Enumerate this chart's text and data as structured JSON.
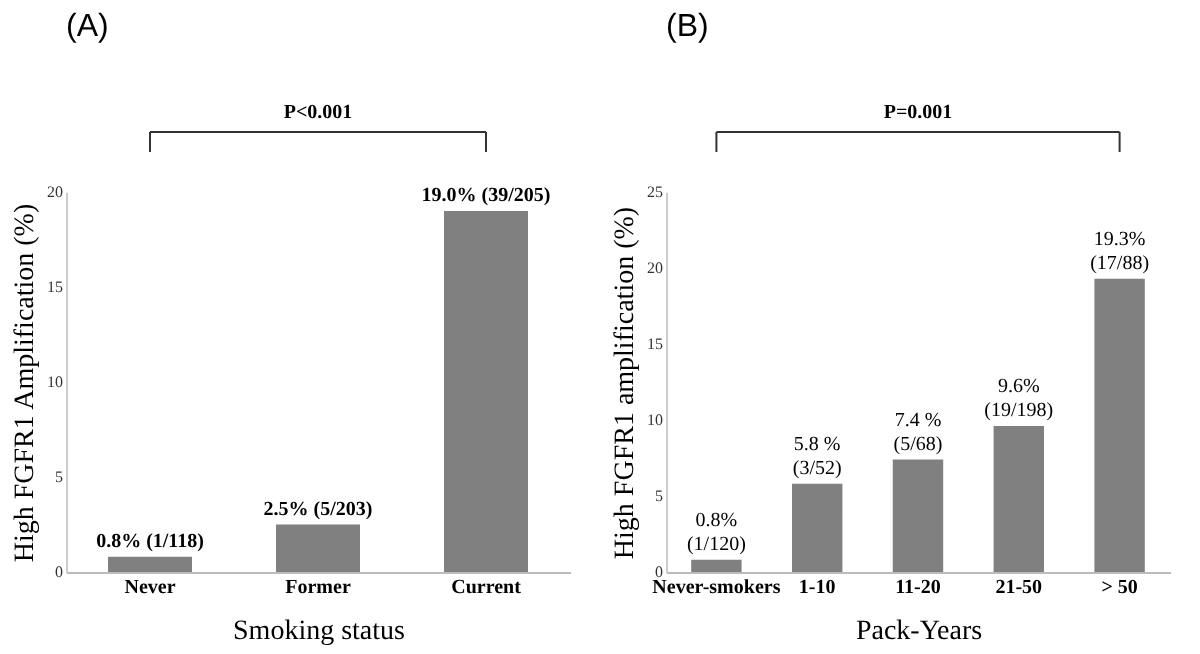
{
  "chart_data": [
    {
      "type": "bar",
      "title": "(A)",
      "xlabel": "Smoking status",
      "ylabel": "High FGFR1 Amplification (%)",
      "categories": [
        "Never",
        "Former",
        "Current"
      ],
      "values": [
        0.8,
        2.5,
        19.0
      ],
      "color": "#808080",
      "value_labels": [
        "0.8% (1/118)",
        "2.5% (5/203)",
        "19.0% (39/205)"
      ],
      "ylim": [
        0,
        20
      ],
      "yticks": [
        0,
        5,
        10,
        15,
        20
      ],
      "annotations": [
        "P<0.001"
      ]
    },
    {
      "type": "bar",
      "title": "(B)",
      "xlabel": "Pack-Years",
      "ylabel": "High FGFR1 amplification (%)",
      "categories": [
        "Never-smokers",
        "1-10",
        "11-20",
        "21-50",
        "> 50"
      ],
      "values": [
        0.8,
        5.8,
        7.4,
        9.6,
        19.3
      ],
      "color": "#808080",
      "value_labels": [
        "0.8%\n(1/120)",
        "5.8 %\n(3/52)",
        "7.4 %\n(5/68)",
        "9.6%\n(19/198)",
        "19.3%\n(17/88)"
      ],
      "ylim": [
        0,
        25
      ],
      "yticks": [
        0,
        5,
        10,
        15,
        20,
        25
      ],
      "annotations": [
        "P=0.001"
      ]
    }
  ]
}
